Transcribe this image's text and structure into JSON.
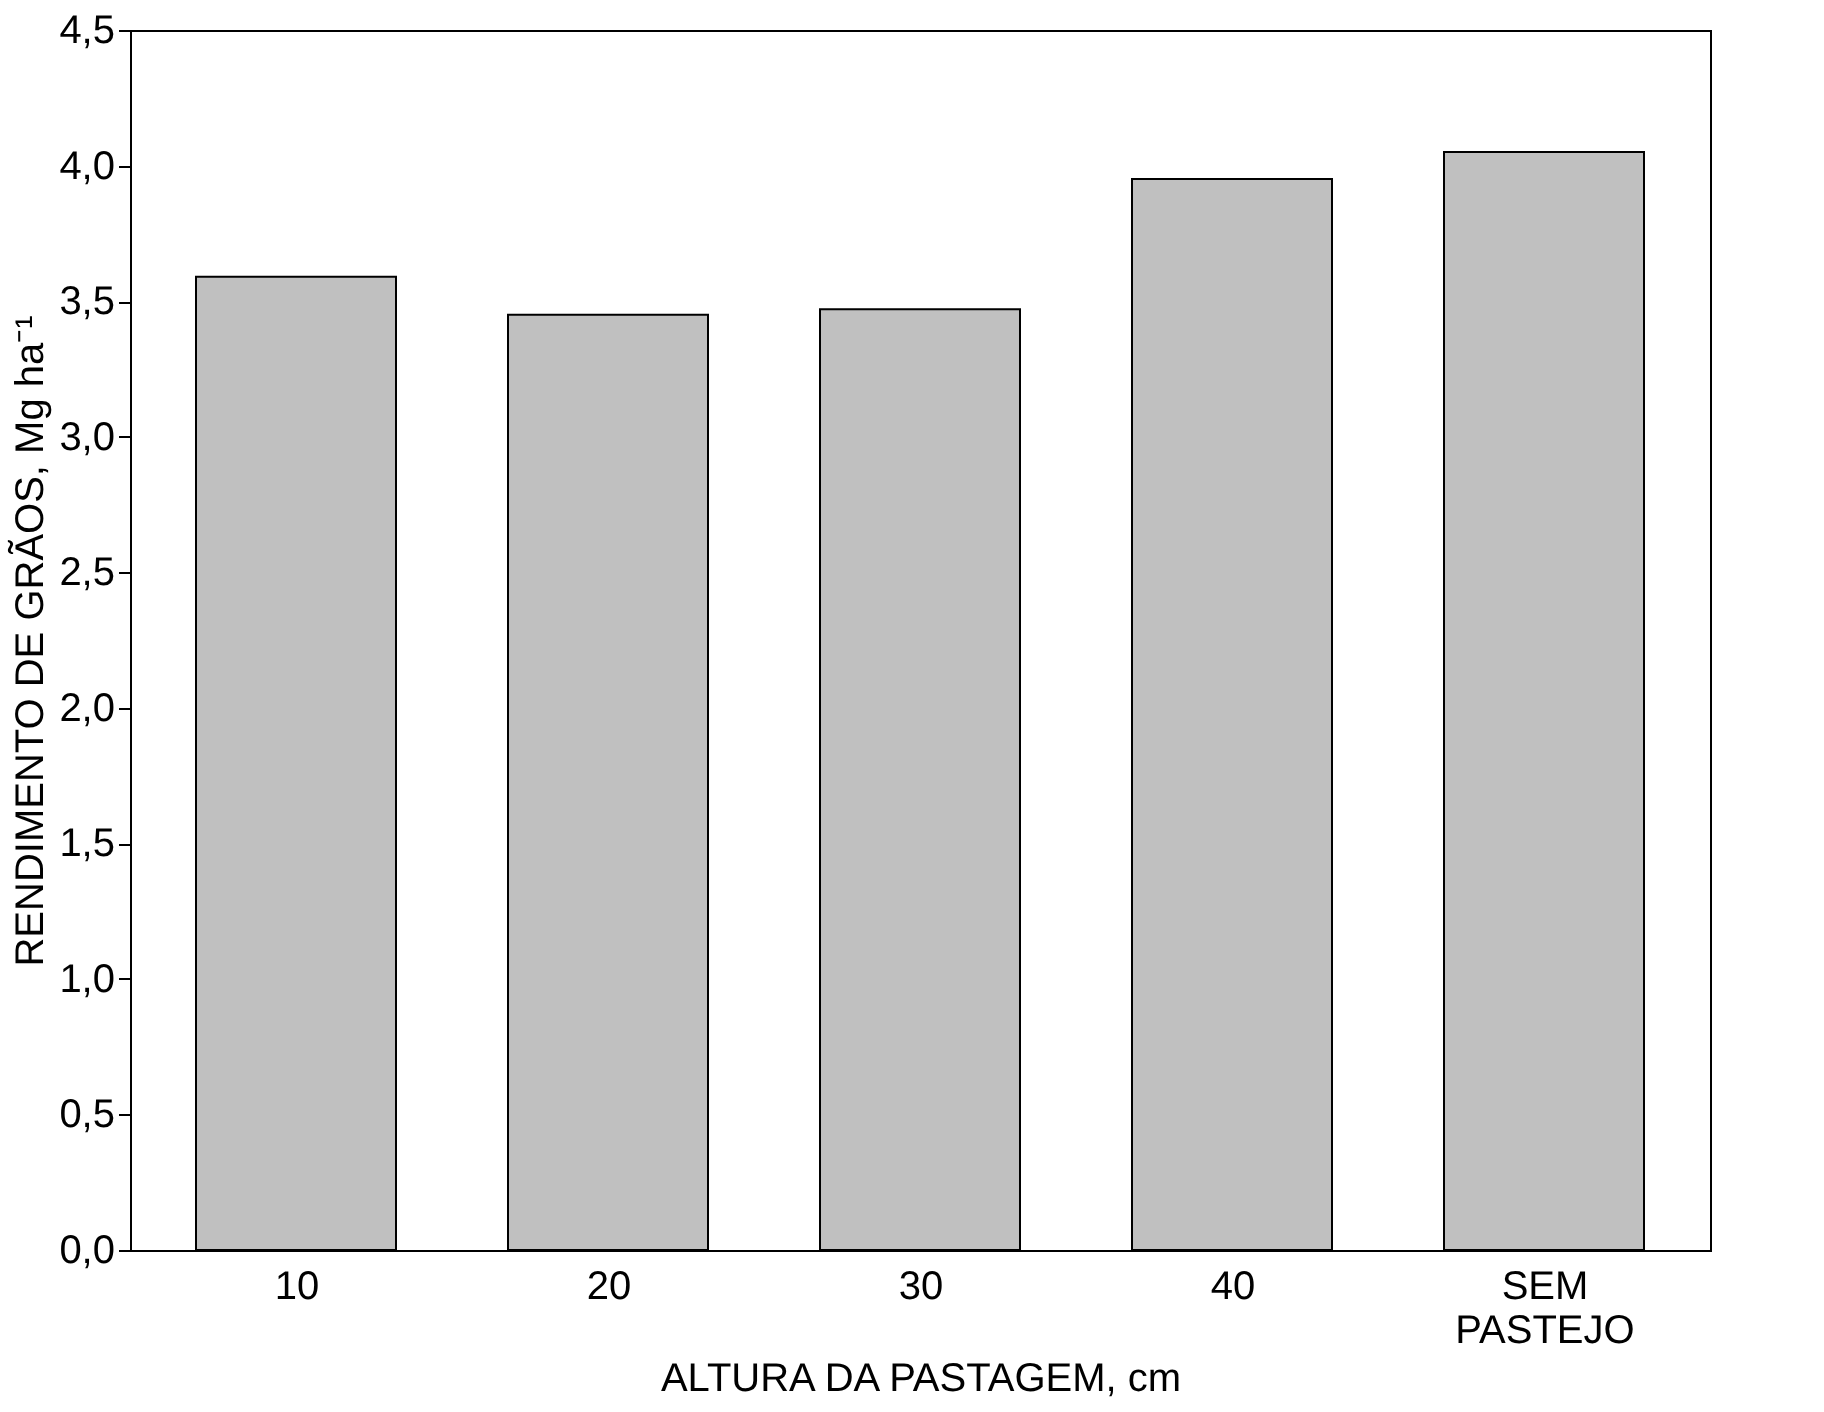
{
  "chart_data": {
    "type": "bar",
    "xlabel": "ALTURA DA PASTAGEM, cm",
    "ylabel": "RENDIMENTO DE GRÃOS, Mg ha⁻¹",
    "categories": [
      "10",
      "20",
      "30",
      "40",
      "SEM PASTEJO"
    ],
    "values": [
      3.59,
      3.45,
      3.47,
      3.95,
      4.05
    ],
    "color": "#c0c0c0",
    "ylim": [
      0,
      4.5
    ],
    "yticks": [
      {
        "value": 0,
        "label": "0,0"
      },
      {
        "value": 0.5,
        "label": "0,5"
      },
      {
        "value": 1,
        "label": "1,0"
      },
      {
        "value": 1.5,
        "label": "1,5"
      },
      {
        "value": 2,
        "label": "2,0"
      },
      {
        "value": 2.5,
        "label": "2,5"
      },
      {
        "value": 3,
        "label": "3,0"
      },
      {
        "value": 3.5,
        "label": "3,5"
      },
      {
        "value": 4,
        "label": "4,0"
      },
      {
        "value": 4.5,
        "label": "4,5"
      }
    ],
    "grid": false
  }
}
